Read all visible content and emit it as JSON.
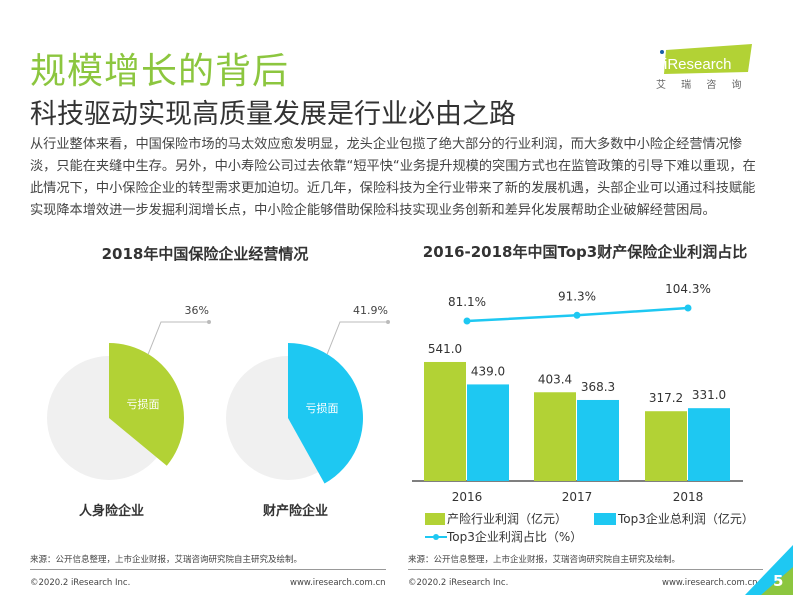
{
  "header": {
    "title": "规模增长的背后",
    "subtitle": "科技驱动实现高质量发展是行业必由之路"
  },
  "logo": {
    "brand": "iResearch",
    "cn": "艾 瑞 咨 询"
  },
  "body": "从行业整体来看，中国保险市场的马太效应愈发明显，龙头企业包揽了绝大部分的行业利润，而大多数中小险企经营情况惨淡，只能在夹缝中生存。另外，中小寿险公司过去依靠“短平快“业务提升规模的突围方式也在监管政策的引导下难以重现，在此情况下，中小保险企业的转型需求更加迫切。近几年，保险科技为全行业带来了新的发展机遇，头部企业可以通过科技赋能实现降本增效进一步发掘利润增长点，中小险企能够借助保险科技实现业务创新和差异化发展帮助企业破解经营困局。",
  "colors": {
    "green": "#b2d235",
    "blue": "#1ec8f2",
    "grey": "#f0f0f0",
    "title_green": "#8cc63f"
  },
  "chart_data": [
    {
      "type": "pie",
      "title": "2018年中国保险企业经营情况",
      "pies": [
        {
          "name": "人身险企业",
          "slice_label": "亏损面",
          "value": 36,
          "value_label": "36%",
          "color": "#b2d235"
        },
        {
          "name": "财产险企业",
          "slice_label": "亏损面",
          "value": 41.9,
          "value_label": "41.9%",
          "color": "#1ec8f2"
        }
      ]
    },
    {
      "type": "bar",
      "title": "2016-2018年中国Top3财产保险企业利润占比",
      "categories": [
        "2016",
        "2017",
        "2018"
      ],
      "series": [
        {
          "name": "产险行业利润（亿元）",
          "values": [
            541.0,
            403.4,
            317.2
          ],
          "labels": [
            "541.0",
            "403.4",
            "317.2"
          ],
          "color": "#b2d235"
        },
        {
          "name": "Top3企业总利润（亿元）",
          "values": [
            439.0,
            368.3,
            331.0
          ],
          "labels": [
            "439.0",
            "368.3",
            "331.0"
          ],
          "color": "#1ec8f2"
        },
        {
          "name": "Top3企业利润占比（%）",
          "type": "line",
          "values": [
            81.1,
            91.3,
            104.3
          ],
          "labels": [
            "81.1%",
            "91.3%",
            "104.3%"
          ],
          "color": "#1ec8f2"
        }
      ],
      "legend": "bottom"
    }
  ],
  "footer": {
    "source_left": "来源：公开信息整理，上市企业财报，艾瑞咨询研究院自主研究及绘制。",
    "source_right": "来源：公开信息整理，上市企业财报，艾瑞咨询研究院自主研究及绘制。",
    "copyright": "©2020.2 iResearch Inc.",
    "url": "www.iresearch.com.cn",
    "page": "5"
  }
}
